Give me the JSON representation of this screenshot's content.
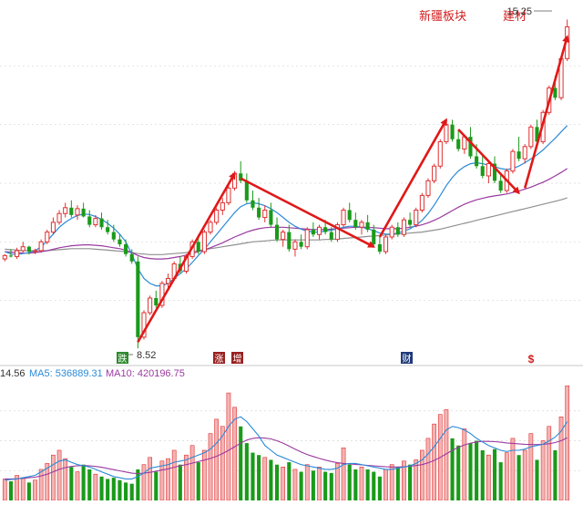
{
  "annotations": {
    "sector_label": "新疆板块",
    "building_label": "建材",
    "high_price": "15.25",
    "low_price": "8.52"
  },
  "markers": [
    {
      "label": "跌",
      "color": "#2e8b2e"
    },
    {
      "label": "涨",
      "color": "#9a2020"
    },
    {
      "label": "增",
      "color": "#9a2020"
    },
    {
      "label": "财",
      "color": "#1f3a7a"
    },
    {
      "label": "$",
      "color": "#d21e1e"
    }
  ],
  "volume_legend": {
    "vol_value": "14.56",
    "ma5_label": "MA5: 536889.31",
    "ma10_label": "MA10: 420196.75"
  },
  "colors": {
    "up": "#e03030",
    "down": "#1a9a1a",
    "ma_short": "#2b8ad8",
    "ma_mid": "#9a3aa0",
    "ma_long": "#909090",
    "arrow": "#e01818"
  },
  "chart_data": [
    {
      "type": "candlestick",
      "title": "",
      "y_range": [
        8.3,
        15.5
      ],
      "grid": true,
      "annotated_high": 15.25,
      "annotated_low": 8.52,
      "ohlc": [
        [
          10.35,
          10.45,
          10.3,
          10.42
        ],
        [
          10.42,
          10.55,
          10.38,
          10.4
        ],
        [
          10.4,
          10.58,
          10.35,
          10.52
        ],
        [
          10.52,
          10.7,
          10.48,
          10.6
        ],
        [
          10.6,
          10.62,
          10.44,
          10.5
        ],
        [
          10.5,
          10.56,
          10.45,
          10.52
        ],
        [
          10.52,
          10.75,
          10.48,
          10.7
        ],
        [
          10.7,
          10.95,
          10.65,
          10.9
        ],
        [
          10.9,
          11.2,
          10.85,
          11.1
        ],
        [
          11.1,
          11.35,
          11.05,
          11.28
        ],
        [
          11.28,
          11.5,
          11.2,
          11.4
        ],
        [
          11.4,
          11.55,
          11.2,
          11.25
        ],
        [
          11.25,
          11.45,
          11.15,
          11.38
        ],
        [
          11.38,
          11.5,
          11.2,
          11.22
        ],
        [
          11.22,
          11.35,
          11.0,
          11.05
        ],
        [
          11.05,
          11.25,
          11.0,
          11.18
        ],
        [
          11.18,
          11.3,
          10.95,
          11.0
        ],
        [
          11.0,
          11.15,
          10.85,
          10.9
        ],
        [
          10.9,
          11.05,
          10.7,
          10.75
        ],
        [
          10.75,
          10.85,
          10.6,
          10.65
        ],
        [
          10.65,
          10.75,
          10.4,
          10.45
        ],
        [
          10.45,
          10.55,
          10.25,
          10.3
        ],
        [
          10.3,
          10.4,
          8.52,
          8.75
        ],
        [
          8.75,
          9.3,
          8.7,
          9.25
        ],
        [
          9.25,
          9.6,
          9.2,
          9.55
        ],
        [
          9.55,
          9.7,
          9.35,
          9.4
        ],
        [
          9.4,
          9.9,
          9.35,
          9.85
        ],
        [
          9.85,
          10.05,
          9.75,
          9.95
        ],
        [
          9.95,
          10.3,
          9.9,
          10.25
        ],
        [
          10.25,
          10.4,
          10.05,
          10.1
        ],
        [
          10.1,
          10.45,
          10.05,
          10.4
        ],
        [
          10.4,
          10.75,
          10.35,
          10.7
        ],
        [
          10.7,
          10.85,
          10.45,
          10.5
        ],
        [
          10.5,
          10.95,
          10.45,
          10.9
        ],
        [
          10.9,
          11.15,
          10.85,
          11.1
        ],
        [
          11.1,
          11.4,
          11.05,
          11.35
        ],
        [
          11.35,
          11.6,
          11.25,
          11.5
        ],
        [
          11.5,
          11.85,
          11.45,
          11.8
        ],
        [
          11.8,
          12.15,
          11.75,
          12.1
        ],
        [
          12.1,
          12.35,
          11.9,
          11.95
        ],
        [
          11.95,
          12.1,
          11.5,
          11.55
        ],
        [
          11.55,
          11.75,
          11.35,
          11.4
        ],
        [
          11.4,
          11.6,
          11.15,
          11.2
        ],
        [
          11.2,
          11.45,
          11.1,
          11.35
        ],
        [
          11.35,
          11.5,
          11.0,
          11.05
        ],
        [
          11.05,
          11.2,
          10.7,
          10.75
        ],
        [
          10.75,
          10.95,
          10.6,
          10.9
        ],
        [
          10.9,
          11.05,
          10.5,
          10.55
        ],
        [
          10.55,
          10.75,
          10.4,
          10.7
        ],
        [
          10.7,
          10.85,
          10.55,
          10.6
        ],
        [
          10.6,
          11.0,
          10.55,
          10.95
        ],
        [
          10.95,
          11.1,
          10.8,
          10.85
        ],
        [
          10.85,
          11.05,
          10.75,
          11.0
        ],
        [
          11.0,
          11.15,
          10.85,
          10.9
        ],
        [
          10.9,
          11.0,
          10.7,
          10.75
        ],
        [
          10.75,
          11.1,
          10.7,
          11.05
        ],
        [
          11.05,
          11.4,
          11.0,
          11.35
        ],
        [
          11.35,
          11.5,
          11.1,
          11.15
        ],
        [
          11.15,
          11.3,
          10.95,
          11.0
        ],
        [
          11.0,
          11.15,
          10.85,
          11.1
        ],
        [
          11.1,
          11.25,
          10.9,
          10.95
        ],
        [
          10.95,
          11.05,
          10.6,
          10.65
        ],
        [
          10.65,
          10.8,
          10.45,
          10.5
        ],
        [
          10.5,
          10.85,
          10.45,
          10.8
        ],
        [
          10.8,
          11.05,
          10.75,
          11.0
        ],
        [
          11.0,
          11.1,
          10.8,
          10.85
        ],
        [
          10.85,
          11.2,
          10.8,
          11.15
        ],
        [
          11.15,
          11.3,
          11.0,
          11.05
        ],
        [
          11.05,
          11.4,
          11.0,
          11.35
        ],
        [
          11.35,
          11.7,
          11.3,
          11.65
        ],
        [
          11.65,
          12.0,
          11.6,
          11.95
        ],
        [
          11.95,
          12.3,
          11.9,
          12.25
        ],
        [
          12.25,
          12.8,
          12.2,
          12.75
        ],
        [
          12.75,
          13.2,
          12.7,
          13.1
        ],
        [
          13.1,
          13.2,
          12.75,
          12.8
        ],
        [
          12.8,
          13.0,
          12.55,
          12.6
        ],
        [
          12.6,
          12.9,
          12.5,
          12.85
        ],
        [
          12.85,
          13.05,
          12.4,
          12.45
        ],
        [
          12.45,
          12.7,
          12.2,
          12.25
        ],
        [
          12.25,
          12.5,
          12.0,
          12.05
        ],
        [
          12.05,
          12.35,
          11.9,
          12.3
        ],
        [
          12.3,
          12.45,
          11.9,
          11.95
        ],
        [
          11.95,
          12.1,
          11.7,
          11.75
        ],
        [
          11.75,
          12.2,
          11.7,
          12.15
        ],
        [
          12.15,
          12.6,
          12.1,
          12.55
        ],
        [
          12.55,
          12.85,
          12.35,
          12.4
        ],
        [
          12.4,
          12.7,
          12.3,
          12.65
        ],
        [
          12.65,
          13.1,
          12.6,
          13.05
        ],
        [
          13.05,
          13.2,
          12.7,
          12.75
        ],
        [
          12.75,
          13.4,
          12.7,
          13.35
        ],
        [
          13.35,
          13.9,
          13.3,
          13.85
        ],
        [
          13.85,
          14.1,
          13.6,
          13.65
        ],
        [
          13.65,
          14.5,
          13.6,
          14.45
        ],
        [
          14.45,
          15.25,
          14.4,
          15.1
        ]
      ],
      "ma_short": [
        10.5,
        10.45,
        10.44,
        10.46,
        10.48,
        10.52,
        10.6,
        10.72,
        10.86,
        11.0,
        11.1,
        11.18,
        11.24,
        11.27,
        11.26,
        11.22,
        11.16,
        11.08,
        10.98,
        10.86,
        10.7,
        10.45,
        10.15,
        9.95,
        9.85,
        9.8,
        9.8,
        9.85,
        9.95,
        10.05,
        10.15,
        10.28,
        10.42,
        10.55,
        10.7,
        10.85,
        11.0,
        11.15,
        11.3,
        11.42,
        11.48,
        11.5,
        11.48,
        11.44,
        11.38,
        11.3,
        11.2,
        11.1,
        11.02,
        10.96,
        10.92,
        10.9,
        10.9,
        10.92,
        10.94,
        10.97,
        11.0,
        11.02,
        11.02,
        11.0,
        10.97,
        10.93,
        10.88,
        10.86,
        10.86,
        10.88,
        10.92,
        10.97,
        11.04,
        11.14,
        11.28,
        11.45,
        11.65,
        11.85,
        12.02,
        12.15,
        12.24,
        12.3,
        12.32,
        12.3,
        12.27,
        12.24,
        12.2,
        12.18,
        12.2,
        12.25,
        12.32,
        12.4,
        12.48,
        12.58,
        12.7,
        12.82,
        12.95,
        13.08
      ],
      "ma_mid": [
        10.5,
        10.49,
        10.48,
        10.47,
        10.47,
        10.48,
        10.5,
        10.52,
        10.55,
        10.58,
        10.6,
        10.62,
        10.63,
        10.64,
        10.64,
        10.63,
        10.62,
        10.6,
        10.58,
        10.56,
        10.53,
        10.48,
        10.42,
        10.38,
        10.36,
        10.35,
        10.35,
        10.36,
        10.38,
        10.4,
        10.43,
        10.46,
        10.5,
        10.54,
        10.58,
        10.63,
        10.68,
        10.74,
        10.8,
        10.85,
        10.9,
        10.94,
        10.97,
        10.99,
        11.0,
        11.0,
        11.0,
        10.99,
        10.98,
        10.97,
        10.96,
        10.95,
        10.95,
        10.95,
        10.96,
        10.97,
        10.98,
        10.99,
        11.0,
        11.0,
        11.0,
        10.99,
        10.98,
        10.97,
        10.97,
        10.97,
        10.98,
        11.0,
        11.02,
        11.05,
        11.09,
        11.14,
        11.2,
        11.27,
        11.34,
        11.41,
        11.47,
        11.52,
        11.56,
        11.59,
        11.62,
        11.64,
        11.66,
        11.68,
        11.71,
        11.74,
        11.78,
        11.82,
        11.87,
        11.92,
        11.98,
        12.05,
        12.12,
        12.2
      ],
      "ma_long": [
        10.55,
        10.54,
        10.53,
        10.52,
        10.52,
        10.52,
        10.52,
        10.52,
        10.53,
        10.54,
        10.55,
        10.56,
        10.56,
        10.56,
        10.56,
        10.55,
        10.54,
        10.53,
        10.52,
        10.51,
        10.5,
        10.48,
        10.46,
        10.45,
        10.44,
        10.44,
        10.44,
        10.45,
        10.46,
        10.47,
        10.48,
        10.5,
        10.52,
        10.54,
        10.56,
        10.58,
        10.6,
        10.62,
        10.64,
        10.66,
        10.68,
        10.7,
        10.71,
        10.72,
        10.73,
        10.74,
        10.74,
        10.74,
        10.74,
        10.74,
        10.74,
        10.74,
        10.74,
        10.75,
        10.75,
        10.76,
        10.77,
        10.78,
        10.79,
        10.8,
        10.81,
        10.82,
        10.83,
        10.84,
        10.85,
        10.86,
        10.87,
        10.88,
        10.89,
        10.9,
        10.92,
        10.94,
        10.96,
        10.99,
        11.02,
        11.05,
        11.08,
        11.11,
        11.14,
        11.17,
        11.2,
        11.23,
        11.26,
        11.29,
        11.32,
        11.35,
        11.38,
        11.41,
        11.44,
        11.47,
        11.5,
        11.53,
        11.56,
        11.6
      ],
      "trend_arrows": [
        [
          22,
          8.65,
          38,
          12.1
        ],
        [
          39,
          12.0,
          61,
          10.6
        ],
        [
          62,
          10.8,
          73,
          13.2
        ],
        [
          75,
          13.0,
          85,
          11.7
        ],
        [
          86,
          11.8,
          93,
          14.9
        ]
      ]
    },
    {
      "type": "bar",
      "title": "",
      "legend": [
        "14.56",
        "MA5: 536889.31",
        "MA10: 420196.75"
      ],
      "y_range": [
        0,
        1000000
      ],
      "grid": true,
      "values": [
        180000,
        160000,
        210000,
        190000,
        150000,
        170000,
        260000,
        310000,
        380000,
        420000,
        350000,
        280000,
        240000,
        300000,
        260000,
        220000,
        200000,
        180000,
        190000,
        170000,
        150000,
        140000,
        260000,
        300000,
        360000,
        240000,
        330000,
        350000,
        420000,
        300000,
        380000,
        460000,
        320000,
        420000,
        560000,
        680000,
        620000,
        900000,
        780000,
        620000,
        480000,
        400000,
        380000,
        360000,
        340000,
        300000,
        280000,
        320000,
        260000,
        240000,
        300000,
        250000,
        280000,
        240000,
        230000,
        310000,
        440000,
        300000,
        260000,
        280000,
        260000,
        240000,
        200000,
        260000,
        300000,
        280000,
        330000,
        300000,
        340000,
        420000,
        520000,
        640000,
        720000,
        760000,
        520000,
        460000,
        600000,
        480000,
        500000,
        420000,
        380000,
        430000,
        320000,
        400000,
        520000,
        380000,
        420000,
        560000,
        340000,
        500000,
        620000,
        420000,
        700000,
        960000
      ],
      "ma5": [
        170000,
        175000,
        180000,
        190000,
        200000,
        210000,
        240000,
        270000,
        300000,
        330000,
        340000,
        320000,
        300000,
        290000,
        280000,
        260000,
        240000,
        220000,
        200000,
        190000,
        180000,
        180000,
        200000,
        230000,
        270000,
        280000,
        290000,
        300000,
        320000,
        330000,
        340000,
        360000,
        380000,
        400000,
        430000,
        480000,
        540000,
        620000,
        680000,
        700000,
        660000,
        600000,
        540000,
        460000,
        420000,
        380000,
        360000,
        340000,
        320000,
        300000,
        290000,
        280000,
        270000,
        260000,
        260000,
        270000,
        300000,
        310000,
        310000,
        300000,
        290000,
        280000,
        270000,
        260000,
        260000,
        270000,
        280000,
        290000,
        310000,
        340000,
        390000,
        450000,
        520000,
        590000,
        620000,
        610000,
        590000,
        560000,
        520000,
        490000,
        460000,
        440000,
        420000,
        410000,
        420000,
        420000,
        430000,
        450000,
        460000,
        470000,
        500000,
        530000,
        580000,
        660000
      ],
      "ma10": [
        180000,
        180000,
        182000,
        185000,
        190000,
        195000,
        205000,
        220000,
        240000,
        260000,
        275000,
        285000,
        290000,
        292000,
        290000,
        285000,
        278000,
        268000,
        258000,
        248000,
        238000,
        228000,
        225000,
        228000,
        235000,
        245000,
        255000,
        265000,
        278000,
        290000,
        300000,
        312000,
        325000,
        338000,
        352000,
        370000,
        392000,
        420000,
        450000,
        480000,
        505000,
        520000,
        525000,
        522000,
        515000,
        500000,
        480000,
        455000,
        430000,
        405000,
        385000,
        368000,
        352000,
        338000,
        326000,
        316000,
        310000,
        306000,
        302000,
        298000,
        294000,
        290000,
        286000,
        282000,
        280000,
        280000,
        282000,
        286000,
        292000,
        300000,
        315000,
        335000,
        360000,
        390000,
        420000,
        445000,
        465000,
        480000,
        490000,
        495000,
        495000,
        492000,
        488000,
        482000,
        478000,
        474000,
        470000,
        468000,
        468000,
        470000,
        475000,
        485000,
        500000,
        525000
      ]
    }
  ]
}
